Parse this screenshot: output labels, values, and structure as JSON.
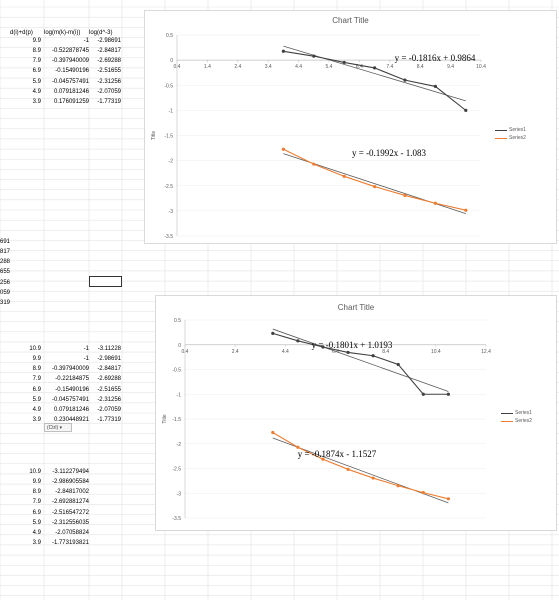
{
  "sheet": {
    "top_headers": [
      "d(i)+d(p)",
      "log(m(k)-m(i))",
      "log(d^-3)"
    ],
    "block1": [
      [
        "9.9",
        "-1",
        "-2.98691"
      ],
      [
        "8.9",
        "-0.522878745",
        "-2.84817"
      ],
      [
        "7.9",
        "-0.397940009",
        "-2.69288"
      ],
      [
        "6.9",
        "-0.15490196",
        "-2.51655"
      ],
      [
        "5.9",
        "-0.045757491",
        "-2.31256"
      ],
      [
        "4.9",
        "0.079181246",
        "-2.07059"
      ],
      [
        "3.9",
        "0.176091259",
        "-1.77319"
      ]
    ],
    "left_fragments": [
      "691",
      "817",
      "288",
      "655",
      "256",
      "059",
      "319"
    ],
    "block2": [
      [
        "10.9",
        "-1",
        "-3.11228"
      ],
      [
        "9.9",
        "-1",
        "-2.98691"
      ],
      [
        "8.9",
        "-0.397940009",
        "-2.84817"
      ],
      [
        "7.9",
        "-0.22184875",
        "-2.69288"
      ],
      [
        "6.9",
        "-0.15490196",
        "-2.51655"
      ],
      [
        "5.9",
        "-0.045757491",
        "-2.31256"
      ],
      [
        "4.9",
        "0.079181246",
        "-2.07059"
      ],
      [
        "3.9",
        "0.230448921",
        "-1.77319"
      ]
    ],
    "paste_options": "(Ctrl) ▾",
    "block3": [
      [
        "10.9",
        "-3.112279494"
      ],
      [
        "9.9",
        "-2.986905584"
      ],
      [
        "8.9",
        "-2.84817002"
      ],
      [
        "7.9",
        "-2.692881274"
      ],
      [
        "6.9",
        "-2.516547272"
      ],
      [
        "5.9",
        "-2.312556035"
      ],
      [
        "4.9",
        "-2.07058824"
      ],
      [
        "3.9",
        "-1.773193821"
      ]
    ]
  },
  "chart_data": [
    {
      "type": "scatter",
      "title": "Chart Title",
      "ylabel": "Title",
      "xlim": [
        0.4,
        10.4
      ],
      "ylim": [
        -3.5,
        0.5
      ],
      "x_ticks": [
        0.4,
        1.4,
        2.4,
        3.4,
        4.4,
        5.4,
        6.4,
        7.4,
        8.4,
        9.4,
        10.4
      ],
      "y_ticks": [
        0.5,
        0,
        -0.5,
        -1,
        -1.5,
        -2,
        -2.5,
        -3,
        -3.5
      ],
      "x_tick_labels": [
        "0.4",
        "1.4",
        "2.4",
        "3.4",
        "4.4",
        "5.4",
        "6.4",
        "7.4",
        "8.4",
        "9.4",
        "10.4"
      ],
      "y_tick_labels": [
        "0.5",
        "0",
        "-0.5",
        "-1",
        "-1.5",
        "-2",
        "-2.5",
        "-3",
        "-3.5"
      ],
      "legend": [
        "Series1",
        "Series2"
      ],
      "series": [
        {
          "name": "Series1",
          "color": "#404040",
          "x": [
            3.9,
            4.9,
            5.9,
            6.9,
            7.9,
            8.9,
            9.9
          ],
          "y": [
            0.176091259,
            0.079181246,
            -0.045757491,
            -0.15490196,
            -0.397940009,
            -0.522878745,
            -1
          ],
          "trendline": {
            "slope": -0.1816,
            "intercept": 0.9864
          }
        },
        {
          "name": "Series2",
          "color": "#ed7d31",
          "x": [
            3.9,
            4.9,
            5.9,
            6.9,
            7.9,
            8.9,
            9.9
          ],
          "y": [
            -1.77319,
            -2.07059,
            -2.31256,
            -2.51655,
            -2.69288,
            -2.84817,
            -2.98691
          ],
          "trendline": {
            "slope": -0.1992,
            "intercept": -1.083
          }
        }
      ],
      "equations": [
        "y = -0.1816x + 0.9864",
        "y = -0.1992x - 1.083"
      ]
    },
    {
      "type": "scatter",
      "title": "Chart Title",
      "ylabel": "Title",
      "xlim": [
        0.4,
        12.4
      ],
      "ylim": [
        -3.5,
        0.5
      ],
      "x_ticks": [
        0.4,
        2.4,
        4.4,
        6.4,
        8.4,
        10.4,
        12.4
      ],
      "y_ticks": [
        0.5,
        0,
        -0.5,
        -1,
        -1.5,
        -2,
        -2.5,
        -3,
        -3.5
      ],
      "x_tick_labels": [
        "0.4",
        "2.4",
        "4.4",
        "6.4",
        "8.4",
        "10.4",
        "12.4"
      ],
      "y_tick_labels": [
        "0.5",
        "0",
        "-0.5",
        "-1",
        "-1.5",
        "-2",
        "-2.5",
        "-3",
        "-3.5"
      ],
      "legend": [
        "Series1",
        "Series2"
      ],
      "series": [
        {
          "name": "Series1",
          "color": "#404040",
          "x": [
            3.9,
            4.9,
            5.9,
            6.9,
            7.9,
            8.9,
            9.9,
            10.9
          ],
          "y": [
            0.230448921,
            0.079181246,
            -0.045757491,
            -0.15490196,
            -0.22184875,
            -0.397940009,
            -1,
            -1
          ],
          "trendline": {
            "slope": -0.1801,
            "intercept": 1.0193
          }
        },
        {
          "name": "Series2",
          "color": "#ed7d31",
          "x": [
            3.9,
            4.9,
            5.9,
            6.9,
            7.9,
            8.9,
            9.9,
            10.9
          ],
          "y": [
            -1.77319,
            -2.07059,
            -2.31256,
            -2.51655,
            -2.69288,
            -2.84817,
            -2.98691,
            -3.11228
          ],
          "trendline": {
            "slope": -0.1874,
            "intercept": -1.1527
          }
        }
      ],
      "equations": [
        "y = -0.1801x + 1.0193",
        "y = -0.1874x - 1.1527"
      ]
    }
  ]
}
